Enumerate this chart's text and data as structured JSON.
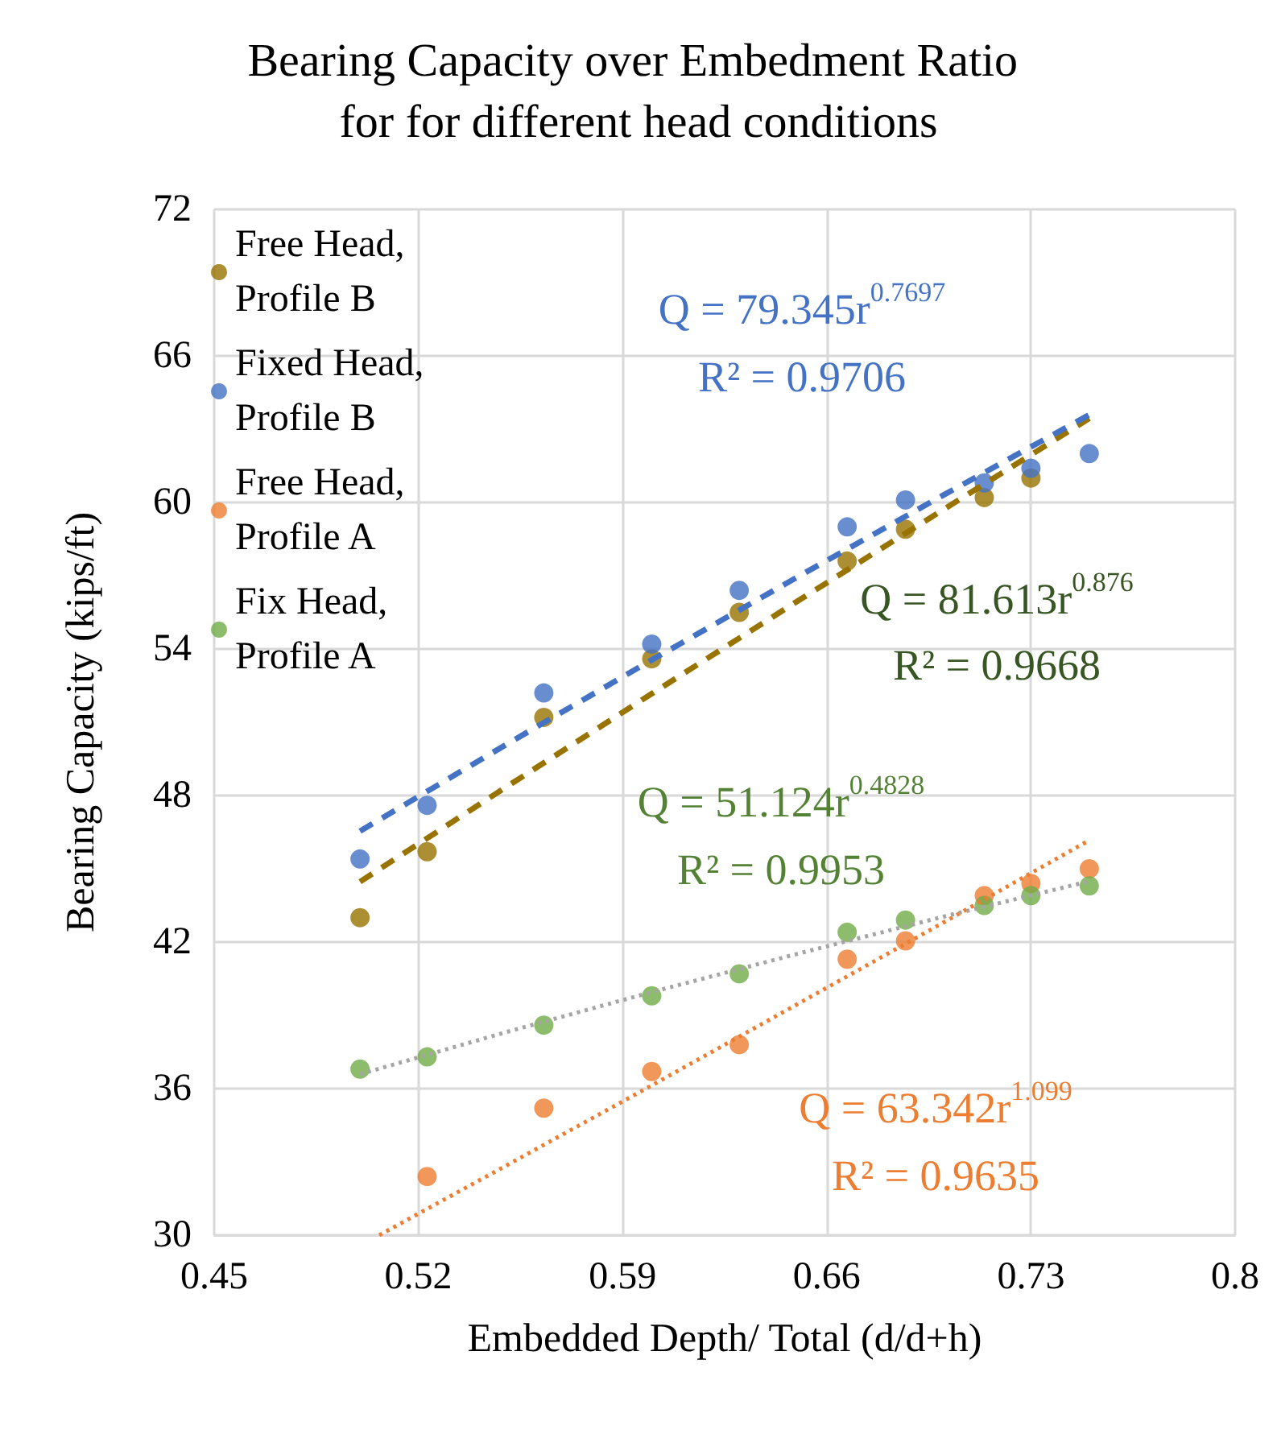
{
  "chart_data": {
    "type": "scatter",
    "title": "Bearing Capacity over Embedment Ratio for for different head conditions",
    "xlabel": "Embedded Depth/ Total (d/d+h)",
    "ylabel": "Bearing Capacity (kips/ft)",
    "x": [
      0.5,
      0.523,
      0.563,
      0.6,
      0.63,
      0.667,
      0.687,
      0.714,
      0.73,
      0.75
    ],
    "series": [
      {
        "name": "Free Head, Profile B",
        "color": "#997300",
        "values": [
          43.0,
          45.7,
          51.2,
          53.6,
          55.5,
          57.6,
          58.9,
          60.2,
          61.0,
          null
        ]
      },
      {
        "name": "Fixed Head, Profile B",
        "color": "#4472c4",
        "values": [
          45.4,
          47.6,
          52.2,
          54.2,
          56.4,
          59.0,
          60.1,
          60.8,
          61.4,
          62.0
        ]
      },
      {
        "name": "Free Head, Profile A",
        "color": "#ed7d31",
        "values": [
          null,
          32.4,
          35.2,
          36.7,
          37.8,
          41.3,
          42.05,
          43.9,
          44.4,
          45.0
        ]
      },
      {
        "name": "Fix Head, Profile A",
        "color": "#70ad47",
        "values": [
          36.8,
          37.3,
          38.6,
          39.8,
          40.7,
          42.4,
          42.9,
          43.5,
          43.9,
          44.3
        ]
      },
      {
        "type": "line",
        "color": "#997300",
        "line_style": "dashed",
        "marker": "none",
        "x": [
          0.5,
          0.55,
          0.6,
          0.65,
          0.7,
          0.75
        ],
        "values": [
          44.47,
          48.34,
          52.17,
          55.96,
          59.71,
          63.44
        ]
      },
      {
        "type": "line",
        "color": "#4472c4",
        "line_style": "dashed",
        "marker": "none",
        "x": [
          0.5,
          0.55,
          0.6,
          0.65,
          0.7,
          0.75
        ],
        "values": [
          46.54,
          50.08,
          53.55,
          56.95,
          60.3,
          63.59
        ]
      },
      {
        "type": "line",
        "color": "#ed7d31",
        "line_style": "dotted",
        "marker": "none",
        "x": [
          0.5066,
          0.55,
          0.6,
          0.65,
          0.7,
          0.75
        ],
        "values": [
          30.0,
          32.84,
          36.13,
          39.46,
          42.8,
          46.17
        ]
      },
      {
        "type": "line",
        "color": "#a5a5a5",
        "line_style": "dotted",
        "marker": "none",
        "x": [
          0.5,
          0.55,
          0.6,
          0.65,
          0.7,
          0.75
        ],
        "values": [
          36.59,
          38.31,
          39.95,
          41.52,
          43.04,
          44.49
        ]
      }
    ],
    "marker": "circle",
    "grid": true,
    "legend": "top left",
    "xlim": [
      0.45,
      0.8
    ],
    "xticks": [
      0.45,
      0.52,
      0.59,
      0.66,
      0.73,
      0.8
    ],
    "ylim": [
      30,
      72
    ],
    "yticks": [
      30,
      36,
      42,
      48,
      54,
      60,
      66,
      72
    ],
    "annotations": [
      "Q = 79.345r$^{0.7697}$",
      "R² = 0.9706",
      "Q = 81.613r$^{0.876}$",
      "R² = 0.9668",
      "Q = 51.124r$^{0.4828}$",
      "R² = 0.9953",
      "Q = 63.342r$^{1.099}$",
      "R² = 0.9635"
    ]
  }
}
